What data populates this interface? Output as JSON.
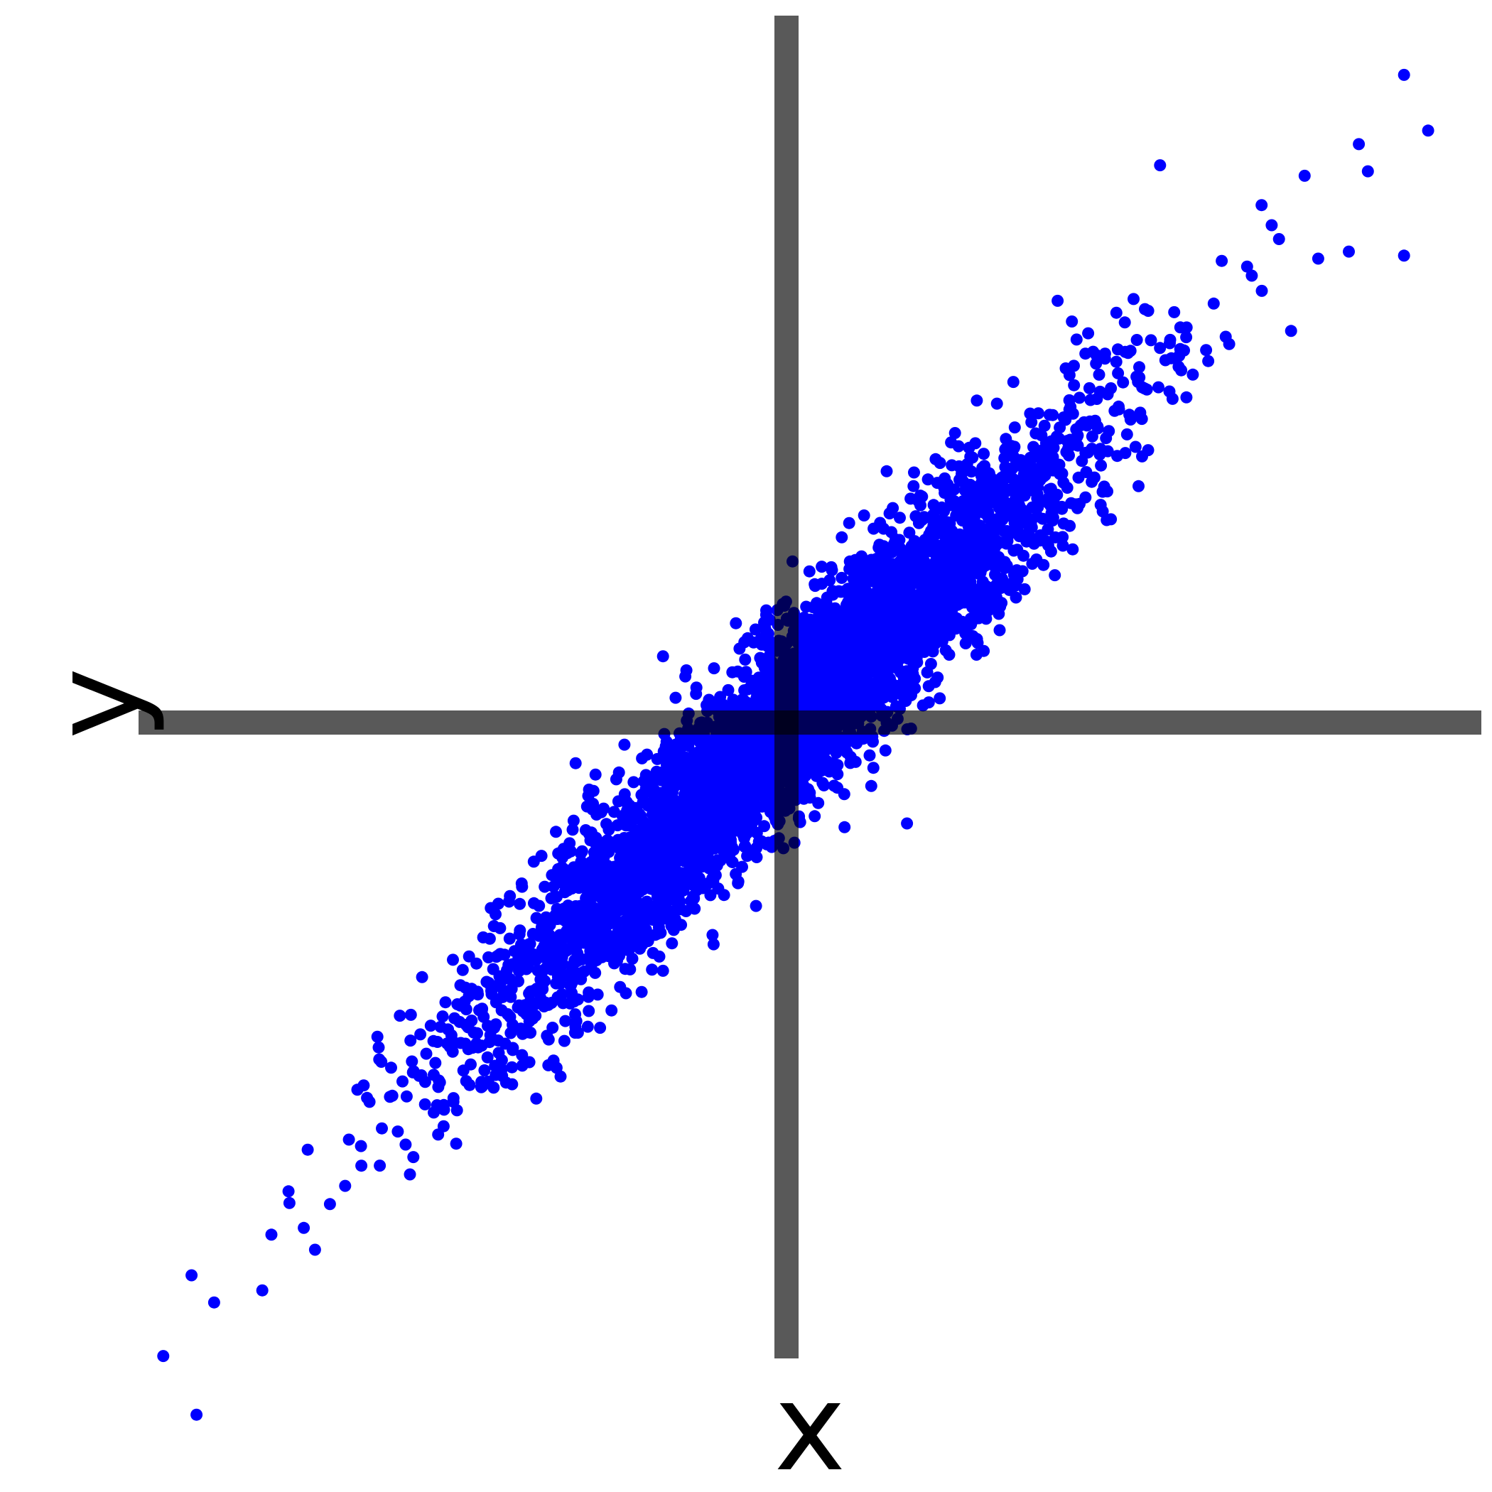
{
  "chart_data": {
    "type": "scatter",
    "title": "",
    "xlabel": "x",
    "ylabel": "y",
    "xlim": [
      -4.5,
      4.5
    ],
    "ylim": [
      -4.5,
      4.5
    ],
    "grid": false,
    "legend": "none",
    "tick_labels": false,
    "axes_style": "centered crosshair at origin",
    "series": [
      {
        "color": "#0000ff",
        "correlation": 0.95,
        "outliers": [
          [
            4.1,
            4.3
          ],
          [
            4.26,
            3.93
          ],
          [
            3.8,
            3.84
          ],
          [
            3.86,
            3.66
          ],
          [
            4.1,
            3.1
          ],
          [
            3.44,
            3.63
          ],
          [
            2.48,
            3.7
          ],
          [
            3.27,
            3.21
          ],
          [
            3.53,
            3.08
          ],
          [
            3.35,
            2.6
          ],
          [
            1.8,
            2.8
          ],
          [
            2.8,
            2.4
          ],
          [
            1.9,
            1.15
          ],
          [
            0.78,
            0.81
          ],
          [
            0.8,
            -0.67
          ],
          [
            -3.95,
            -3.67
          ],
          [
            -3.8,
            -3.85
          ],
          [
            -3.48,
            -3.77
          ],
          [
            -3.42,
            -3.4
          ],
          [
            -3.3,
            -3.19
          ],
          [
            -3.13,
            -3.5
          ],
          [
            -2.5,
            -3.0
          ],
          [
            -2.04,
            -1.91
          ],
          [
            -1.5,
            -2.35
          ],
          [
            -1.4,
            -0.27
          ],
          [
            -0.82,
            0.44
          ],
          [
            0.04,
            1.07
          ]
        ]
      }
    ]
  }
}
